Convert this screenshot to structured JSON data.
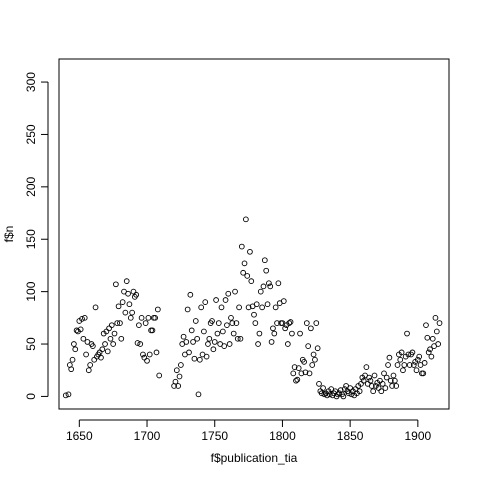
{
  "chart_data": {
    "type": "scatter",
    "xlabel": "f$publication_tia",
    "ylabel": "f$n",
    "xlim": [
      1635,
      1923
    ],
    "ylim": [
      -12,
      322
    ],
    "x_ticks": [
      1650,
      1700,
      1750,
      1800,
      1850,
      1900
    ],
    "y_ticks": [
      0,
      50,
      100,
      150,
      200,
      250,
      300
    ],
    "x_tick_labels": [
      "1650",
      "1700",
      "1750",
      "1800",
      "1850",
      "1900"
    ],
    "y_tick_labels": [
      "0",
      "50",
      "100",
      "150",
      "200",
      "250",
      "300"
    ],
    "grid": false,
    "legend": "none",
    "marker": "open-circle",
    "points": [
      [
        1640,
        1
      ],
      [
        1642,
        2
      ],
      [
        1643,
        30
      ],
      [
        1644,
        26
      ],
      [
        1645,
        35
      ],
      [
        1646,
        50
      ],
      [
        1647,
        45
      ],
      [
        1648,
        63
      ],
      [
        1649,
        62
      ],
      [
        1650,
        72
      ],
      [
        1651,
        64
      ],
      [
        1652,
        74
      ],
      [
        1653,
        55
      ],
      [
        1654,
        75
      ],
      [
        1655,
        40
      ],
      [
        1656,
        52
      ],
      [
        1657,
        25
      ],
      [
        1658,
        30
      ],
      [
        1659,
        50
      ],
      [
        1660,
        48
      ],
      [
        1661,
        35
      ],
      [
        1662,
        85
      ],
      [
        1663,
        38
      ],
      [
        1664,
        40
      ],
      [
        1665,
        42
      ],
      [
        1666,
        37
      ],
      [
        1667,
        45
      ],
      [
        1668,
        60
      ],
      [
        1669,
        50
      ],
      [
        1670,
        62
      ],
      [
        1671,
        43
      ],
      [
        1672,
        65
      ],
      [
        1673,
        55
      ],
      [
        1674,
        68
      ],
      [
        1675,
        50
      ],
      [
        1676,
        60
      ],
      [
        1677,
        107
      ],
      [
        1678,
        70
      ],
      [
        1679,
        86
      ],
      [
        1680,
        70
      ],
      [
        1681,
        55
      ],
      [
        1682,
        90
      ],
      [
        1683,
        100
      ],
      [
        1684,
        80
      ],
      [
        1685,
        110
      ],
      [
        1686,
        98
      ],
      [
        1687,
        88
      ],
      [
        1688,
        75
      ],
      [
        1689,
        80
      ],
      [
        1690,
        100
      ],
      [
        1691,
        95
      ],
      [
        1692,
        97
      ],
      [
        1693,
        51
      ],
      [
        1694,
        68
      ],
      [
        1695,
        50
      ],
      [
        1696,
        75
      ],
      [
        1697,
        40
      ],
      [
        1698,
        37
      ],
      [
        1699,
        70
      ],
      [
        1700,
        34
      ],
      [
        1701,
        75
      ],
      [
        1702,
        40
      ],
      [
        1703,
        63
      ],
      [
        1704,
        63
      ],
      [
        1705,
        75
      ],
      [
        1706,
        75
      ],
      [
        1707,
        42
      ],
      [
        1708,
        83
      ],
      [
        1709,
        20
      ],
      [
        1720,
        10
      ],
      [
        1721,
        14
      ],
      [
        1722,
        25
      ],
      [
        1723,
        10
      ],
      [
        1724,
        19
      ],
      [
        1725,
        30
      ],
      [
        1726,
        50
      ],
      [
        1727,
        57
      ],
      [
        1728,
        40
      ],
      [
        1729,
        52
      ],
      [
        1730,
        83
      ],
      [
        1731,
        42
      ],
      [
        1732,
        97
      ],
      [
        1733,
        63
      ],
      [
        1734,
        52
      ],
      [
        1735,
        36
      ],
      [
        1736,
        72
      ],
      [
        1737,
        55
      ],
      [
        1738,
        2
      ],
      [
        1739,
        35
      ],
      [
        1740,
        85
      ],
      [
        1741,
        40
      ],
      [
        1742,
        62
      ],
      [
        1743,
        90
      ],
      [
        1744,
        38
      ],
      [
        1745,
        50
      ],
      [
        1746,
        55
      ],
      [
        1747,
        70
      ],
      [
        1748,
        72
      ],
      [
        1749,
        45
      ],
      [
        1750,
        52
      ],
      [
        1751,
        92
      ],
      [
        1752,
        60
      ],
      [
        1753,
        70
      ],
      [
        1754,
        50
      ],
      [
        1755,
        85
      ],
      [
        1756,
        62
      ],
      [
        1757,
        48
      ],
      [
        1758,
        92
      ],
      [
        1759,
        68
      ],
      [
        1760,
        98
      ],
      [
        1761,
        50
      ],
      [
        1762,
        75
      ],
      [
        1763,
        70
      ],
      [
        1764,
        60
      ],
      [
        1765,
        100
      ],
      [
        1766,
        70
      ],
      [
        1767,
        55
      ],
      [
        1768,
        85
      ],
      [
        1769,
        55
      ],
      [
        1770,
        143
      ],
      [
        1771,
        118
      ],
      [
        1772,
        127
      ],
      [
        1773,
        169
      ],
      [
        1774,
        115
      ],
      [
        1775,
        85
      ],
      [
        1776,
        138
      ],
      [
        1777,
        110
      ],
      [
        1778,
        86
      ],
      [
        1779,
        78
      ],
      [
        1780,
        70
      ],
      [
        1781,
        88
      ],
      [
        1782,
        50
      ],
      [
        1783,
        60
      ],
      [
        1784,
        100
      ],
      [
        1785,
        85
      ],
      [
        1786,
        105
      ],
      [
        1787,
        130
      ],
      [
        1788,
        120
      ],
      [
        1789,
        88
      ],
      [
        1790,
        108
      ],
      [
        1791,
        105
      ],
      [
        1792,
        52
      ],
      [
        1793,
        65
      ],
      [
        1794,
        60
      ],
      [
        1795,
        85
      ],
      [
        1796,
        70
      ],
      [
        1797,
        108
      ],
      [
        1798,
        89
      ],
      [
        1799,
        70
      ],
      [
        1800,
        70
      ],
      [
        1801,
        91
      ],
      [
        1802,
        65
      ],
      [
        1803,
        68
      ],
      [
        1804,
        50
      ],
      [
        1805,
        70
      ],
      [
        1806,
        71
      ],
      [
        1807,
        60
      ],
      [
        1808,
        22
      ],
      [
        1809,
        28
      ],
      [
        1810,
        15
      ],
      [
        1811,
        16
      ],
      [
        1812,
        27
      ],
      [
        1813,
        60
      ],
      [
        1814,
        22
      ],
      [
        1815,
        35
      ],
      [
        1816,
        33
      ],
      [
        1817,
        23
      ],
      [
        1818,
        70
      ],
      [
        1819,
        48
      ],
      [
        1820,
        22
      ],
      [
        1821,
        65
      ],
      [
        1822,
        30
      ],
      [
        1823,
        40
      ],
      [
        1824,
        35
      ],
      [
        1825,
        70
      ],
      [
        1826,
        46
      ],
      [
        1827,
        12
      ],
      [
        1828,
        5
      ],
      [
        1829,
        3
      ],
      [
        1830,
        8
      ],
      [
        1831,
        2
      ],
      [
        1832,
        3
      ],
      [
        1833,
        1
      ],
      [
        1834,
        5
      ],
      [
        1835,
        2
      ],
      [
        1836,
        7
      ],
      [
        1837,
        1
      ],
      [
        1838,
        3
      ],
      [
        1839,
        5
      ],
      [
        1840,
        0
      ],
      [
        1841,
        2
      ],
      [
        1842,
        3
      ],
      [
        1843,
        6
      ],
      [
        1844,
        2
      ],
      [
        1845,
        0
      ],
      [
        1846,
        7
      ],
      [
        1847,
        10
      ],
      [
        1848,
        5
      ],
      [
        1849,
        3
      ],
      [
        1850,
        8
      ],
      [
        1851,
        2
      ],
      [
        1852,
        5
      ],
      [
        1853,
        1
      ],
      [
        1854,
        7
      ],
      [
        1855,
        3
      ],
      [
        1856,
        10
      ],
      [
        1857,
        5
      ],
      [
        1858,
        12
      ],
      [
        1859,
        18
      ],
      [
        1860,
        15
      ],
      [
        1861,
        20
      ],
      [
        1862,
        28
      ],
      [
        1863,
        12
      ],
      [
        1864,
        18
      ],
      [
        1865,
        15
      ],
      [
        1866,
        10
      ],
      [
        1867,
        5
      ],
      [
        1868,
        20
      ],
      [
        1869,
        10
      ],
      [
        1870,
        13
      ],
      [
        1871,
        8
      ],
      [
        1872,
        15
      ],
      [
        1873,
        5
      ],
      [
        1874,
        12
      ],
      [
        1875,
        22
      ],
      [
        1876,
        8
      ],
      [
        1877,
        18
      ],
      [
        1878,
        30
      ],
      [
        1879,
        37
      ],
      [
        1880,
        15
      ],
      [
        1881,
        10
      ],
      [
        1882,
        20
      ],
      [
        1883,
        15
      ],
      [
        1884,
        10
      ],
      [
        1885,
        30
      ],
      [
        1886,
        40
      ],
      [
        1887,
        35
      ],
      [
        1888,
        42
      ],
      [
        1889,
        25
      ],
      [
        1890,
        30
      ],
      [
        1891,
        38
      ],
      [
        1892,
        60
      ],
      [
        1893,
        40
      ],
      [
        1894,
        30
      ],
      [
        1895,
        40
      ],
      [
        1896,
        42
      ],
      [
        1897,
        30
      ],
      [
        1898,
        33
      ],
      [
        1899,
        25
      ],
      [
        1900,
        35
      ],
      [
        1901,
        38
      ],
      [
        1902,
        30
      ],
      [
        1903,
        22
      ],
      [
        1904,
        22
      ],
      [
        1905,
        32
      ],
      [
        1906,
        68
      ],
      [
        1907,
        56
      ],
      [
        1908,
        42
      ],
      [
        1909,
        45
      ],
      [
        1910,
        38
      ],
      [
        1911,
        55
      ],
      [
        1912,
        48
      ],
      [
        1913,
        75
      ],
      [
        1914,
        62
      ],
      [
        1915,
        50
      ],
      [
        1916,
        70
      ]
    ]
  }
}
